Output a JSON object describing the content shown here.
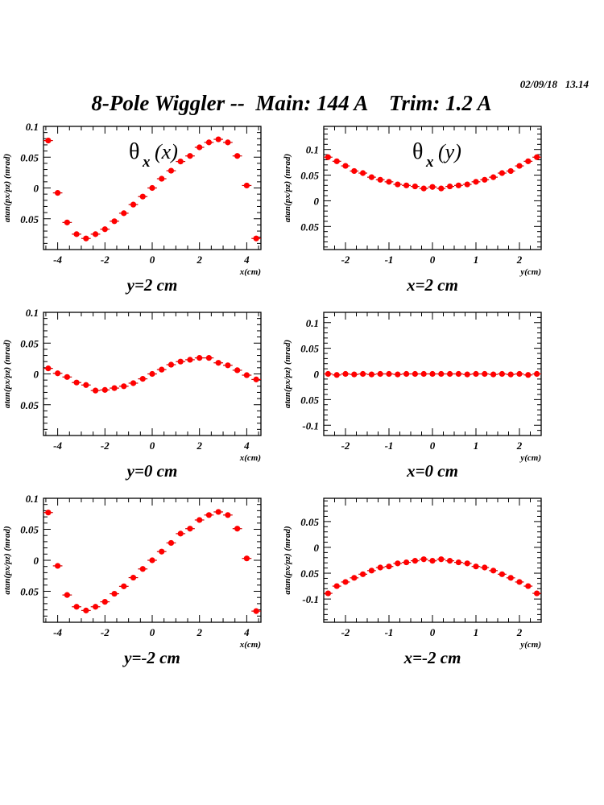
{
  "header": {
    "timestamp": "02/09/18   13.14",
    "title": "8-Pole Wiggler --  Main: 144 A    Trim: 1.2 A"
  },
  "colors": {
    "marker": "#ff0000",
    "errorbar": "#cc0000",
    "frame": "#000000",
    "background": "#ffffff"
  },
  "chart_data": [
    {
      "type": "scatter",
      "id": "thx_vs_x_y2",
      "annotation": "θx (x)",
      "annotation_main": "θ",
      "annotation_sub": "x",
      "annotation_arg": "(x)",
      "subtitle": "y=2 cm",
      "xlabel": "x(cm)",
      "ylabel": "atan(px/pz) (mrad)",
      "xlim": [
        -4.6,
        4.6
      ],
      "ylim": [
        -0.1,
        0.1
      ],
      "xticks": [
        -4,
        -2,
        0,
        2,
        4
      ],
      "xtick_labels": [
        "-4",
        "-2",
        "0",
        "2",
        "4"
      ],
      "yticks": [
        0.1,
        0.05,
        0,
        -0.05
      ],
      "ytick_labels": [
        "0.1",
        "0.05",
        "0",
        "0.05"
      ],
      "x": [
        -4.4,
        -4.0,
        -3.6,
        -3.2,
        -2.8,
        -2.4,
        -2.0,
        -1.6,
        -1.2,
        -0.8,
        -0.4,
        0.0,
        0.4,
        0.8,
        1.2,
        1.6,
        2.0,
        2.4,
        2.8,
        3.2,
        3.6,
        4.0,
        4.4
      ],
      "y": [
        0.077,
        -0.008,
        -0.056,
        -0.075,
        -0.082,
        -0.075,
        -0.067,
        -0.054,
        -0.041,
        -0.027,
        -0.014,
        0.0,
        0.015,
        0.028,
        0.043,
        0.052,
        0.066,
        0.074,
        0.079,
        0.074,
        0.052,
        0.004,
        -0.082
      ],
      "xerr": 0.2
    },
    {
      "type": "scatter",
      "id": "thx_vs_y_x2",
      "annotation": "θx (y)",
      "annotation_main": "θ",
      "annotation_sub": "x",
      "annotation_arg": "(y)",
      "subtitle": "x=2 cm",
      "xlabel": "y(cm)",
      "ylabel": "atan(px/pz) (mrad)",
      "xlim": [
        -2.5,
        2.5
      ],
      "ylim": [
        -0.095,
        0.145
      ],
      "xticks": [
        -2,
        -1,
        0,
        1,
        2
      ],
      "xtick_labels": [
        "-2",
        "-1",
        "0",
        "1",
        "2"
      ],
      "yticks": [
        0.1,
        0.05,
        0,
        -0.05
      ],
      "ytick_labels": [
        "0.1",
        "0.05",
        "0",
        "0.05"
      ],
      "x": [
        -2.4,
        -2.2,
        -2.0,
        -1.8,
        -1.6,
        -1.4,
        -1.2,
        -1.0,
        -0.8,
        -0.6,
        -0.4,
        -0.2,
        0.0,
        0.2,
        0.4,
        0.6,
        0.8,
        1.0,
        1.2,
        1.4,
        1.6,
        1.8,
        2.0,
        2.2,
        2.4
      ],
      "y": [
        0.085,
        0.077,
        0.068,
        0.058,
        0.054,
        0.046,
        0.041,
        0.037,
        0.032,
        0.03,
        0.028,
        0.024,
        0.027,
        0.024,
        0.028,
        0.03,
        0.032,
        0.037,
        0.041,
        0.046,
        0.054,
        0.058,
        0.068,
        0.077,
        0.085
      ],
      "xerr": 0.1
    },
    {
      "type": "scatter",
      "id": "thx_vs_x_y0",
      "subtitle": "y=0 cm",
      "xlabel": "x(cm)",
      "ylabel": "atan(px/pz) (mrad)",
      "xlim": [
        -4.6,
        4.6
      ],
      "ylim": [
        -0.1,
        0.1
      ],
      "xticks": [
        -4,
        -2,
        0,
        2,
        4
      ],
      "xtick_labels": [
        "-4",
        "-2",
        "0",
        "2",
        "4"
      ],
      "yticks": [
        0.1,
        0.05,
        0,
        -0.05
      ],
      "ytick_labels": [
        "0.1",
        "0.05",
        "0",
        "0.05"
      ],
      "x": [
        -4.4,
        -4.0,
        -3.6,
        -3.2,
        -2.8,
        -2.4,
        -2.0,
        -1.6,
        -1.2,
        -0.8,
        -0.4,
        0.0,
        0.4,
        0.8,
        1.2,
        1.6,
        2.0,
        2.4,
        2.8,
        3.2,
        3.6,
        4.0,
        4.4
      ],
      "y": [
        0.009,
        0.001,
        -0.005,
        -0.014,
        -0.018,
        -0.027,
        -0.026,
        -0.023,
        -0.02,
        -0.015,
        -0.008,
        0.0,
        0.007,
        0.015,
        0.02,
        0.023,
        0.026,
        0.026,
        0.018,
        0.014,
        0.006,
        -0.002,
        -0.009
      ],
      "xerr": 0.2
    },
    {
      "type": "scatter",
      "id": "thx_vs_y_x0",
      "subtitle": "x=0 cm",
      "xlabel": "y(cm)",
      "ylabel": "atan(px/pz) (mrad)",
      "xlim": [
        -2.5,
        2.5
      ],
      "ylim": [
        -0.12,
        0.12
      ],
      "xticks": [
        -2,
        -1,
        0,
        1,
        2
      ],
      "xtick_labels": [
        "-2",
        "-1",
        "0",
        "1",
        "2"
      ],
      "yticks": [
        0.1,
        0.05,
        0,
        -0.05,
        -0.1
      ],
      "ytick_labels": [
        "0.1",
        "0.05",
        "0",
        "0.05",
        "-0.1"
      ],
      "x": [
        -2.4,
        -2.2,
        -2.0,
        -1.8,
        -1.6,
        -1.4,
        -1.2,
        -1.0,
        -0.8,
        -0.6,
        -0.4,
        -0.2,
        0.0,
        0.2,
        0.4,
        0.6,
        0.8,
        1.0,
        1.2,
        1.4,
        1.6,
        1.8,
        2.0,
        2.2,
        2.4
      ],
      "y": [
        0.0,
        -0.002,
        0.0,
        -0.001,
        0.0,
        -0.001,
        0.0,
        0.0,
        -0.001,
        0.0,
        0.0,
        0.0,
        0.0,
        0.0,
        0.0,
        0.0,
        -0.001,
        0.0,
        0.0,
        -0.001,
        0.0,
        -0.001,
        0.0,
        -0.002,
        0.0
      ],
      "xerr": 0.1
    },
    {
      "type": "scatter",
      "id": "thx_vs_x_ym2",
      "subtitle": "y=-2 cm",
      "xlabel": "x(cm)",
      "ylabel": "atan(px/pz) (mrad)",
      "xlim": [
        -4.6,
        4.6
      ],
      "ylim": [
        -0.1,
        0.1
      ],
      "xticks": [
        -4,
        -2,
        0,
        2,
        4
      ],
      "xtick_labels": [
        "-4",
        "-2",
        "0",
        "2",
        "4"
      ],
      "yticks": [
        0.1,
        0.05,
        0,
        -0.05
      ],
      "ytick_labels": [
        "0.1",
        "0.05",
        "0",
        "0.05"
      ],
      "x": [
        -4.4,
        -4.0,
        -3.6,
        -3.2,
        -2.8,
        -2.4,
        -2.0,
        -1.6,
        -1.2,
        -0.8,
        -0.4,
        0.0,
        0.4,
        0.8,
        1.2,
        1.6,
        2.0,
        2.4,
        2.8,
        3.2,
        3.6,
        4.0,
        4.4
      ],
      "y": [
        0.077,
        -0.009,
        -0.056,
        -0.075,
        -0.081,
        -0.075,
        -0.067,
        -0.054,
        -0.042,
        -0.028,
        -0.014,
        0.0,
        0.014,
        0.028,
        0.043,
        0.051,
        0.065,
        0.073,
        0.078,
        0.073,
        0.051,
        0.003,
        -0.082
      ],
      "xerr": 0.2
    },
    {
      "type": "scatter",
      "id": "thx_vs_y_xm2",
      "subtitle": "x=-2 cm",
      "xlabel": "y(cm)",
      "ylabel": "atan(px/pz) (mrad)",
      "xlim": [
        -2.5,
        2.5
      ],
      "ylim": [
        -0.145,
        0.095
      ],
      "xticks": [
        -2,
        -1,
        0,
        1,
        2
      ],
      "xtick_labels": [
        "-2",
        "-1",
        "0",
        "1",
        "2"
      ],
      "yticks": [
        0.05,
        0,
        -0.05,
        -0.1
      ],
      "ytick_labels": [
        "0.05",
        "0",
        "0.05",
        "-0.1"
      ],
      "x": [
        -2.4,
        -2.2,
        -2.0,
        -1.8,
        -1.6,
        -1.4,
        -1.2,
        -1.0,
        -0.8,
        -0.6,
        -0.4,
        -0.2,
        0.0,
        0.2,
        0.4,
        0.6,
        0.8,
        1.0,
        1.2,
        1.4,
        1.6,
        1.8,
        2.0,
        2.2,
        2.4
      ],
      "y": [
        -0.089,
        -0.075,
        -0.067,
        -0.059,
        -0.052,
        -0.045,
        -0.039,
        -0.037,
        -0.031,
        -0.029,
        -0.026,
        -0.023,
        -0.026,
        -0.023,
        -0.026,
        -0.029,
        -0.031,
        -0.037,
        -0.039,
        -0.045,
        -0.052,
        -0.059,
        -0.067,
        -0.075,
        -0.089
      ],
      "xerr": 0.1
    }
  ]
}
